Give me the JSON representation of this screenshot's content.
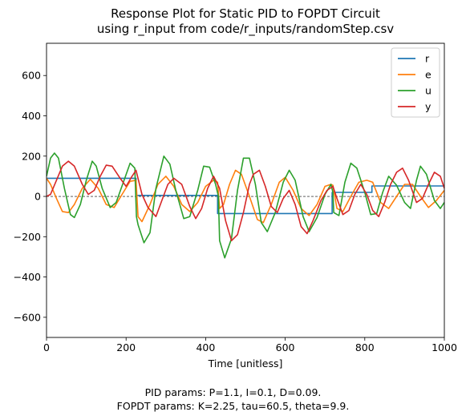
{
  "chart_data": {
    "type": "line",
    "title": [
      "Response Plot for Static PID to FOPDT Circuit",
      "using r_input from code/r_inputs/randomStep.csv"
    ],
    "xlabel": "Time [unitless]",
    "ylabel": "",
    "xlim": [
      0,
      1000
    ],
    "ylim": [
      -700,
      760
    ],
    "xticks": [
      0,
      200,
      400,
      600,
      800,
      1000
    ],
    "yticks": [
      -600,
      -400,
      -200,
      0,
      200,
      400,
      600
    ],
    "zero_line": true,
    "grid": false,
    "legend": "top-right",
    "series": [
      {
        "name": "r",
        "color": "#1f77b4",
        "steps": [
          [
            0,
            90
          ],
          [
            225,
            90
          ],
          [
            225,
            5
          ],
          [
            430,
            5
          ],
          [
            430,
            -85
          ],
          [
            718,
            -85
          ],
          [
            718,
            20
          ],
          [
            818,
            20
          ],
          [
            818,
            52
          ],
          [
            1000,
            52
          ]
        ]
      },
      {
        "name": "e",
        "color": "#ff7f0e",
        "points": [
          [
            0,
            90
          ],
          [
            10,
            60
          ],
          [
            25,
            -10
          ],
          [
            40,
            -75
          ],
          [
            55,
            -80
          ],
          [
            70,
            -40
          ],
          [
            90,
            40
          ],
          [
            110,
            85
          ],
          [
            130,
            40
          ],
          [
            150,
            -40
          ],
          [
            170,
            -55
          ],
          [
            190,
            10
          ],
          [
            210,
            75
          ],
          [
            225,
            80
          ],
          [
            230,
            -100
          ],
          [
            240,
            -125
          ],
          [
            260,
            -40
          ],
          [
            280,
            60
          ],
          [
            300,
            100
          ],
          [
            320,
            50
          ],
          [
            340,
            -40
          ],
          [
            360,
            -75
          ],
          [
            380,
            -30
          ],
          [
            400,
            50
          ],
          [
            420,
            80
          ],
          [
            430,
            70
          ],
          [
            435,
            -60
          ],
          [
            445,
            -40
          ],
          [
            460,
            60
          ],
          [
            475,
            130
          ],
          [
            490,
            110
          ],
          [
            510,
            0
          ],
          [
            530,
            -115
          ],
          [
            545,
            -130
          ],
          [
            565,
            -40
          ],
          [
            585,
            70
          ],
          [
            600,
            95
          ],
          [
            620,
            30
          ],
          [
            640,
            -60
          ],
          [
            660,
            -95
          ],
          [
            680,
            -40
          ],
          [
            700,
            50
          ],
          [
            715,
            60
          ],
          [
            720,
            55
          ],
          [
            730,
            -60
          ],
          [
            745,
            -75
          ],
          [
            765,
            0
          ],
          [
            785,
            70
          ],
          [
            805,
            80
          ],
          [
            820,
            70
          ],
          [
            840,
            -30
          ],
          [
            860,
            -60
          ],
          [
            880,
            0
          ],
          [
            900,
            60
          ],
          [
            920,
            60
          ],
          [
            940,
            0
          ],
          [
            960,
            -55
          ],
          [
            980,
            -20
          ],
          [
            1000,
            30
          ]
        ]
      },
      {
        "name": "u",
        "color": "#2ca02c",
        "points": [
          [
            0,
            100
          ],
          [
            10,
            190
          ],
          [
            20,
            215
          ],
          [
            30,
            190
          ],
          [
            45,
            40
          ],
          [
            60,
            -90
          ],
          [
            70,
            -105
          ],
          [
            85,
            -40
          ],
          [
            100,
            80
          ],
          [
            115,
            175
          ],
          [
            125,
            150
          ],
          [
            140,
            40
          ],
          [
            160,
            -55
          ],
          [
            175,
            -30
          ],
          [
            195,
            80
          ],
          [
            210,
            165
          ],
          [
            222,
            140
          ],
          [
            226,
            -100
          ],
          [
            230,
            -140
          ],
          [
            245,
            -230
          ],
          [
            260,
            -180
          ],
          [
            275,
            40
          ],
          [
            295,
            200
          ],
          [
            310,
            160
          ],
          [
            325,
            30
          ],
          [
            345,
            -110
          ],
          [
            360,
            -100
          ],
          [
            380,
            30
          ],
          [
            395,
            150
          ],
          [
            410,
            145
          ],
          [
            425,
            60
          ],
          [
            432,
            0
          ],
          [
            435,
            -220
          ],
          [
            448,
            -305
          ],
          [
            465,
            -210
          ],
          [
            480,
            30
          ],
          [
            495,
            190
          ],
          [
            510,
            190
          ],
          [
            525,
            60
          ],
          [
            540,
            -130
          ],
          [
            555,
            -175
          ],
          [
            575,
            -80
          ],
          [
            595,
            70
          ],
          [
            610,
            130
          ],
          [
            625,
            80
          ],
          [
            645,
            -100
          ],
          [
            660,
            -175
          ],
          [
            680,
            -105
          ],
          [
            700,
            10
          ],
          [
            715,
            60
          ],
          [
            720,
            20
          ],
          [
            722,
            -80
          ],
          [
            735,
            -95
          ],
          [
            750,
            70
          ],
          [
            765,
            165
          ],
          [
            780,
            140
          ],
          [
            800,
            20
          ],
          [
            815,
            -90
          ],
          [
            830,
            -85
          ],
          [
            845,
            20
          ],
          [
            860,
            100
          ],
          [
            880,
            55
          ],
          [
            900,
            -30
          ],
          [
            915,
            -60
          ],
          [
            930,
            80
          ],
          [
            940,
            150
          ],
          [
            955,
            110
          ],
          [
            975,
            -20
          ],
          [
            990,
            -60
          ],
          [
            1000,
            -30
          ]
        ]
      },
      {
        "name": "y",
        "color": "#d62728",
        "points": [
          [
            0,
            0
          ],
          [
            10,
            10
          ],
          [
            25,
            80
          ],
          [
            40,
            150
          ],
          [
            55,
            175
          ],
          [
            70,
            150
          ],
          [
            90,
            60
          ],
          [
            105,
            10
          ],
          [
            120,
            30
          ],
          [
            135,
            100
          ],
          [
            150,
            155
          ],
          [
            165,
            150
          ],
          [
            185,
            90
          ],
          [
            200,
            50
          ],
          [
            215,
            100
          ],
          [
            225,
            130
          ],
          [
            240,
            10
          ],
          [
            255,
            -55
          ],
          [
            275,
            -100
          ],
          [
            290,
            -20
          ],
          [
            305,
            60
          ],
          [
            320,
            90
          ],
          [
            340,
            60
          ],
          [
            360,
            -50
          ],
          [
            375,
            -110
          ],
          [
            390,
            -60
          ],
          [
            405,
            40
          ],
          [
            420,
            100
          ],
          [
            435,
            40
          ],
          [
            450,
            -120
          ],
          [
            465,
            -220
          ],
          [
            480,
            -190
          ],
          [
            495,
            -80
          ],
          [
            510,
            60
          ],
          [
            520,
            110
          ],
          [
            535,
            130
          ],
          [
            550,
            50
          ],
          [
            565,
            -50
          ],
          [
            580,
            -80
          ],
          [
            595,
            -10
          ],
          [
            610,
            30
          ],
          [
            625,
            -40
          ],
          [
            640,
            -150
          ],
          [
            655,
            -185
          ],
          [
            670,
            -120
          ],
          [
            690,
            -20
          ],
          [
            705,
            30
          ],
          [
            720,
            50
          ],
          [
            730,
            -10
          ],
          [
            745,
            -90
          ],
          [
            760,
            -70
          ],
          [
            775,
            10
          ],
          [
            790,
            60
          ],
          [
            805,
            10
          ],
          [
            820,
            -70
          ],
          [
            835,
            -100
          ],
          [
            850,
            -30
          ],
          [
            865,
            60
          ],
          [
            880,
            120
          ],
          [
            895,
            140
          ],
          [
            910,
            80
          ],
          [
            930,
            -30
          ],
          [
            945,
            -10
          ],
          [
            960,
            60
          ],
          [
            975,
            120
          ],
          [
            990,
            100
          ],
          [
            1000,
            40
          ]
        ]
      }
    ]
  },
  "footer": [
    "PID params: P=1.1, I=0.1, D=0.09.",
    "FOPDT params: K=2.25, tau=60.5, theta=9.9."
  ]
}
